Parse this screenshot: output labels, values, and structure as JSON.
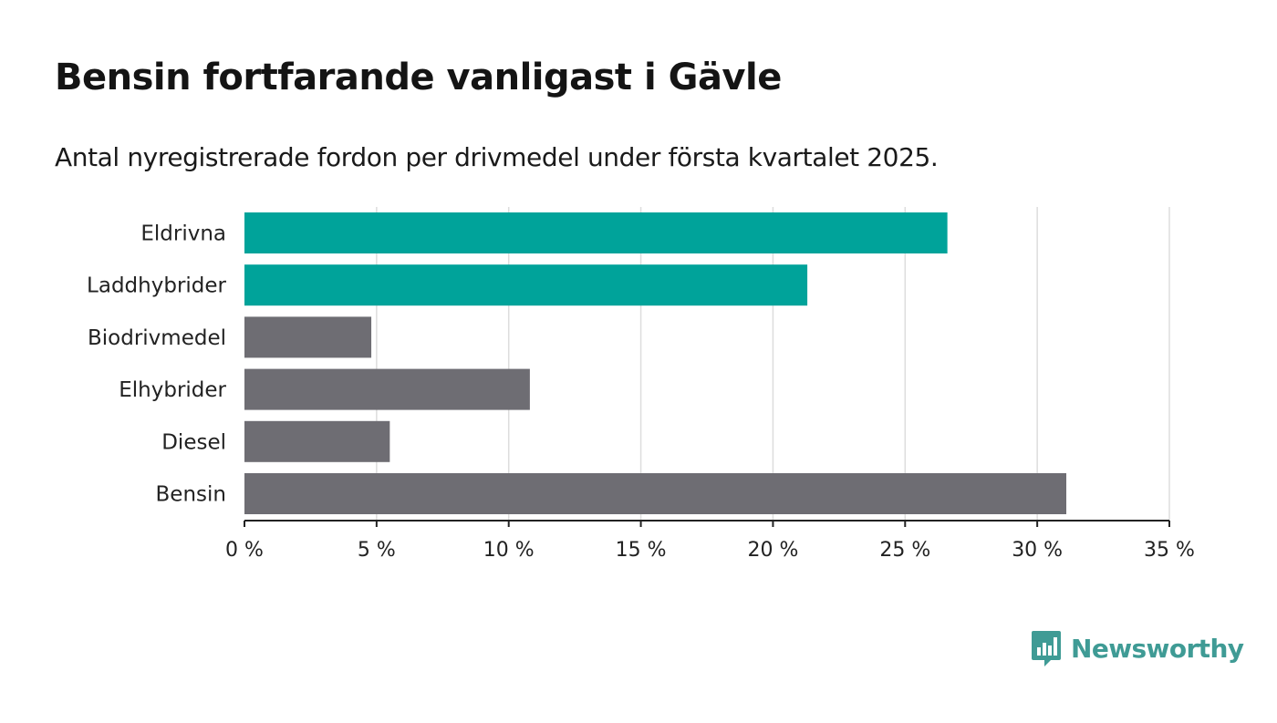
{
  "title": "Bensin fortfarande vanligast i Gävle",
  "subtitle": "Antal nyregistrerade fordon per drivmedel under första kvartalet 2025.",
  "brand": {
    "name": "Newsworthy",
    "icon": "newsworthy-logo-icon",
    "color": "#3f9b95"
  },
  "colors": {
    "highlight": "#00a39a",
    "default": "#6e6d73",
    "grid": "#dddddd",
    "axis": "#222222"
  },
  "chart_data": {
    "type": "bar",
    "orientation": "horizontal",
    "categories": [
      "Eldrivna",
      "Laddhybrider",
      "Biodrivmedel",
      "Elhybrider",
      "Diesel",
      "Bensin"
    ],
    "values": [
      26.6,
      21.3,
      4.8,
      10.8,
      5.5,
      31.1
    ],
    "highlighted": [
      true,
      true,
      false,
      false,
      false,
      false
    ],
    "xlim": [
      0,
      35
    ],
    "xticks": [
      0,
      5,
      10,
      15,
      20,
      25,
      30,
      35
    ],
    "xtick_labels": [
      "0 %",
      "5 %",
      "10 %",
      "15 %",
      "20 %",
      "25 %",
      "30 %",
      "35 %"
    ],
    "xlabel": "",
    "ylabel": "",
    "grid": true,
    "legend": "none"
  }
}
